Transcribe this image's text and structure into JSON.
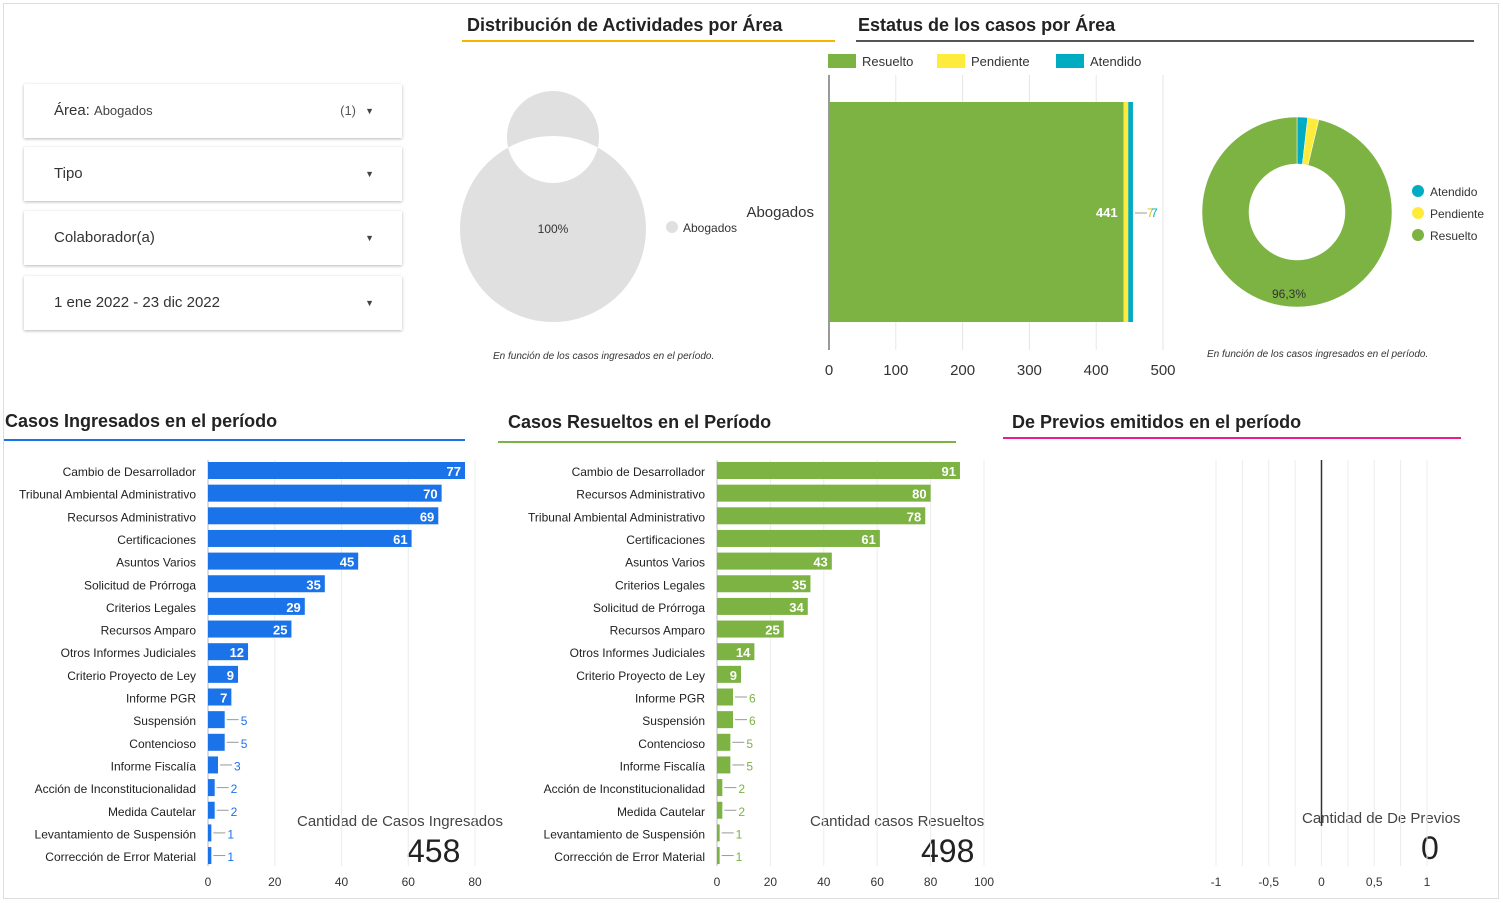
{
  "filters": [
    {
      "label": "Área:",
      "value": "Abogados",
      "count": "(1)"
    },
    {
      "label": "Tipo",
      "value": "",
      "count": ""
    },
    {
      "label": "Colaborador(a)",
      "value": "",
      "count": ""
    },
    {
      "label": "1 ene 2022 - 23 dic 2022",
      "value": "",
      "count": ""
    }
  ],
  "distribucion": {
    "title": "Distribución de Actividades por  Área",
    "note": "En función de los casos ingresados en el período.",
    "accent": "#F4B400"
  },
  "estatus": {
    "title": "Estatus de los casos por Área",
    "note": "En función de los casos ingresados en el período.",
    "accent": "#555555"
  },
  "ingresados": {
    "title": "Casos Ingresados en el período",
    "score_label": "Cantidad de Casos Ingresados",
    "score_value": "458",
    "accent": "#1A73E8"
  },
  "resueltos": {
    "title": "Casos Resueltos en el Período",
    "score_label": "Cantidad casos Resueltos",
    "score_value": "498",
    "accent": "#7CB342"
  },
  "previos": {
    "title": "De Previos emitidos en el período",
    "score_label": "Cantidad de De Previos",
    "score_value": "0",
    "accent": "#E91E8C"
  },
  "colors": {
    "resuelto": "#7CB342",
    "pendiente": "#FFEB3B",
    "atendido": "#00ACC1",
    "neutral": "#E0E0E0",
    "blue": "#1A73E8"
  },
  "chart_data": [
    {
      "type": "pie",
      "title": "Distribución de Actividades por  Área",
      "labels": [
        "Abogados"
      ],
      "values": [
        100
      ],
      "slice_labels": [
        "100%"
      ]
    },
    {
      "type": "bar",
      "orientation": "horizontal",
      "stacked": true,
      "title": "Estatus de los casos por Área",
      "categories": [
        "Abogados"
      ],
      "series": [
        {
          "name": "Resuelto",
          "values": [
            441
          ]
        },
        {
          "name": "Pendiente",
          "values": [
            7
          ]
        },
        {
          "name": "Atendido",
          "values": [
            7
          ]
        }
      ],
      "data_labels": [
        "441",
        "7",
        "7"
      ],
      "xlim": [
        0,
        500
      ],
      "xticks": [
        "0",
        "100",
        "200",
        "300",
        "400",
        "500"
      ],
      "legend": "top"
    },
    {
      "type": "pie",
      "labels": [
        "Atendido",
        "Pendiente",
        "Resuelto"
      ],
      "values": [
        1.8,
        1.9,
        96.3
      ],
      "slice_labels": [
        "96,3%"
      ],
      "legend": "right"
    },
    {
      "type": "bar",
      "orientation": "horizontal",
      "title": "Casos Ingresados en el período",
      "categories": [
        "Cambio de Desarrollador",
        "Tribunal Ambiental Administrativo",
        "Recursos Administrativo",
        "Certificaciones",
        "Asuntos Varios",
        "Solicitud de Prórroga",
        "Criterios Legales",
        "Recursos Amparo",
        "Otros Informes Judiciales",
        "Criterio Proyecto de Ley",
        "Informe PGR",
        "Suspensión",
        "Contencioso",
        "Informe Fiscalía",
        "Acción de Inconstitucionalidad",
        "Medida Cautelar",
        "Levantamiento de Suspensión",
        "Corrección de Error Material"
      ],
      "values": [
        77,
        70,
        69,
        61,
        45,
        35,
        29,
        25,
        12,
        9,
        7,
        5,
        5,
        3,
        2,
        2,
        1,
        1
      ],
      "xlim": [
        0,
        80
      ],
      "xticks": [
        "0",
        "20",
        "40",
        "60",
        "80"
      ]
    },
    {
      "type": "bar",
      "orientation": "horizontal",
      "title": "Casos Resueltos en el Período",
      "categories": [
        "Cambio de Desarrollador",
        "Recursos Administrativo",
        "Tribunal Ambiental Administrativo",
        "Certificaciones",
        "Asuntos Varios",
        "Criterios Legales",
        "Solicitud de Prórroga",
        "Recursos Amparo",
        "Otros Informes Judiciales",
        "Criterio Proyecto de Ley",
        "Informe PGR",
        "Suspensión",
        "Contencioso",
        "Informe Fiscalía",
        "Acción de Inconstitucionalidad",
        "Medida Cautelar",
        "Levantamiento de Suspensión",
        "Corrección de Error Material"
      ],
      "values": [
        91,
        80,
        78,
        61,
        43,
        35,
        34,
        25,
        14,
        9,
        6,
        6,
        5,
        5,
        2,
        2,
        1,
        1
      ],
      "xlim": [
        0,
        100
      ],
      "xticks": [
        "0",
        "20",
        "40",
        "60",
        "80",
        "100"
      ]
    },
    {
      "type": "bar",
      "orientation": "horizontal",
      "title": "De Previos emitidos en el período",
      "categories": [],
      "values": [],
      "xlim": [
        -1,
        1
      ],
      "xticks": [
        "-1",
        "-0,5",
        "0",
        "0,5",
        "1"
      ]
    }
  ]
}
